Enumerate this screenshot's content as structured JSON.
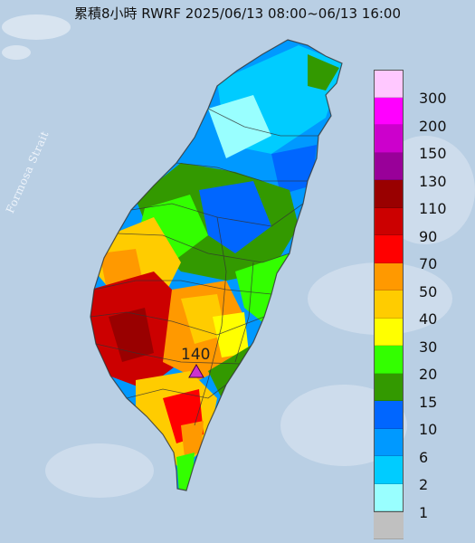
{
  "title": "累積8小時 RWRF 2025/06/13 08:00~06/13 16:00",
  "strait_label": "Formosa Strait",
  "peak_marker": {
    "value": "140",
    "icon": "triangle-marker-icon",
    "color": "#cc33cc"
  },
  "colors": {
    "sea": "#b9cfe4",
    "outline": "#333333"
  },
  "legend": [
    {
      "label": "300",
      "color": "#ffc8ff"
    },
    {
      "label": "200",
      "color": "#ff00ff"
    },
    {
      "label": "150",
      "color": "#cc00cc"
    },
    {
      "label": "130",
      "color": "#990099"
    },
    {
      "label": "110",
      "color": "#990000"
    },
    {
      "label": "90",
      "color": "#cc0000"
    },
    {
      "label": "70",
      "color": "#ff0000"
    },
    {
      "label": "50",
      "color": "#ff9900"
    },
    {
      "label": "40",
      "color": "#ffcc00"
    },
    {
      "label": "30",
      "color": "#ffff00"
    },
    {
      "label": "20",
      "color": "#33ff00"
    },
    {
      "label": "15",
      "color": "#339900"
    },
    {
      "label": "10",
      "color": "#0066ff"
    },
    {
      "label": "6",
      "color": "#0099ff"
    },
    {
      "label": "2",
      "color": "#00ccff"
    },
    {
      "label": "1",
      "color": "#99ffff"
    },
    {
      "label": "",
      "color": "#c0c0c0"
    }
  ]
}
